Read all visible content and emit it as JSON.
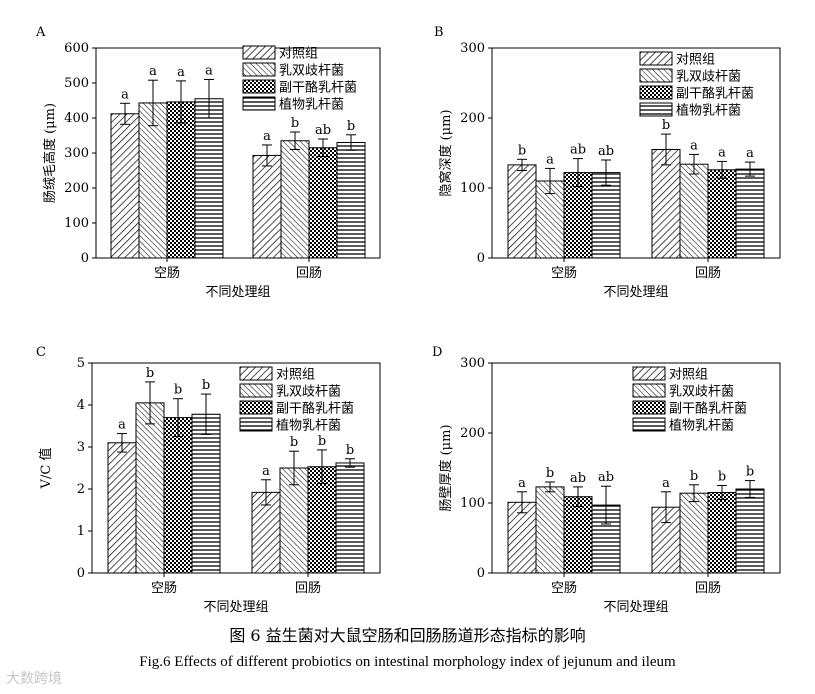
{
  "figure": {
    "caption_cn": "图 6    益生菌对大鼠空肠和回肠肠道形态指标的影响",
    "caption_en": "Fig.6    Effects of different probiotics on intestinal morphology index of jejunum and ileum",
    "watermark": "大数跨境"
  },
  "legend": [
    "对照组",
    "乳双歧杆菌",
    "副干酪乳杆菌",
    "植物乳杆菌"
  ],
  "chart_data": [
    {
      "panel": "A",
      "type": "bar",
      "ylabel": "肠绒毛高度 (μm)",
      "xlabel": "不同处理组",
      "categories": [
        "空肠",
        "回肠"
      ],
      "ylim": [
        0,
        600
      ],
      "yticks": [
        0,
        100,
        200,
        300,
        400,
        500,
        600
      ],
      "legend_pos": "top-right",
      "series": [
        {
          "name": "对照组",
          "values": [
            412,
            293
          ],
          "errors": [
            30,
            30
          ],
          "labels": [
            "a",
            "a"
          ]
        },
        {
          "name": "乳双歧杆菌",
          "values": [
            443,
            335
          ],
          "errors": [
            65,
            25
          ],
          "labels": [
            "a",
            "b"
          ]
        },
        {
          "name": "副干酪乳杆菌",
          "values": [
            446,
            315
          ],
          "errors": [
            60,
            25
          ],
          "labels": [
            "a",
            "ab"
          ]
        },
        {
          "name": "植物乳杆菌",
          "values": [
            455,
            330
          ],
          "errors": [
            55,
            22
          ],
          "labels": [
            "a",
            "b"
          ]
        }
      ]
    },
    {
      "panel": "B",
      "type": "bar",
      "ylabel": "隐窝深度 (μm)",
      "xlabel": "不同处理组",
      "categories": [
        "空肠",
        "回肠"
      ],
      "ylim": [
        0,
        300
      ],
      "yticks": [
        0,
        100,
        200,
        300
      ],
      "legend_pos": "top-right",
      "series": [
        {
          "name": "对照组",
          "values": [
            133,
            155
          ],
          "errors": [
            8,
            22
          ],
          "labels": [
            "b",
            "b"
          ]
        },
        {
          "name": "乳双歧杆菌",
          "values": [
            110,
            134
          ],
          "errors": [
            18,
            14
          ],
          "labels": [
            "a",
            "a"
          ]
        },
        {
          "name": "副干酪乳杆菌",
          "values": [
            122,
            126
          ],
          "errors": [
            20,
            12
          ],
          "labels": [
            "ab",
            "a"
          ]
        },
        {
          "name": "植物乳杆菌",
          "values": [
            122,
            127
          ],
          "errors": [
            18,
            10
          ],
          "labels": [
            "ab",
            "a"
          ]
        }
      ]
    },
    {
      "panel": "C",
      "type": "bar",
      "ylabel": "V/C 值",
      "xlabel": "不同处理组",
      "categories": [
        "空肠",
        "回肠"
      ],
      "ylim": [
        0,
        5
      ],
      "yticks": [
        0,
        1,
        2,
        3,
        4,
        5
      ],
      "legend_pos": "top-right",
      "series": [
        {
          "name": "对照组",
          "values": [
            3.1,
            1.92
          ],
          "errors": [
            0.22,
            0.3
          ],
          "labels": [
            "a",
            "a"
          ]
        },
        {
          "name": "乳双歧杆菌",
          "values": [
            4.05,
            2.5
          ],
          "errors": [
            0.5,
            0.4
          ],
          "labels": [
            "b",
            "b"
          ]
        },
        {
          "name": "副干酪乳杆菌",
          "values": [
            3.7,
            2.53
          ],
          "errors": [
            0.45,
            0.4
          ],
          "labels": [
            "b",
            "b"
          ]
        },
        {
          "name": "植物乳杆菌",
          "values": [
            3.78,
            2.62
          ],
          "errors": [
            0.48,
            0.1
          ],
          "labels": [
            "b",
            "b"
          ]
        }
      ]
    },
    {
      "panel": "D",
      "type": "bar",
      "ylabel": "肠壁厚度 (μm)",
      "xlabel": "不同处理组",
      "categories": [
        "空肠",
        "回肠"
      ],
      "ylim": [
        0,
        300
      ],
      "yticks": [
        0,
        100,
        200,
        300
      ],
      "legend_pos": "top-right",
      "series": [
        {
          "name": "对照组",
          "values": [
            101,
            94
          ],
          "errors": [
            15,
            22
          ],
          "labels": [
            "a",
            "a"
          ]
        },
        {
          "name": "乳双歧杆菌",
          "values": [
            123,
            114
          ],
          "errors": [
            7,
            12
          ],
          "labels": [
            "b",
            "b"
          ]
        },
        {
          "name": "副干酪乳杆菌",
          "values": [
            109,
            115
          ],
          "errors": [
            14,
            10
          ],
          "labels": [
            "ab",
            "b"
          ]
        },
        {
          "name": "植物乳杆菌",
          "values": [
            97,
            120
          ],
          "errors": [
            27,
            12
          ],
          "labels": [
            "ab",
            "b"
          ]
        }
      ]
    }
  ]
}
